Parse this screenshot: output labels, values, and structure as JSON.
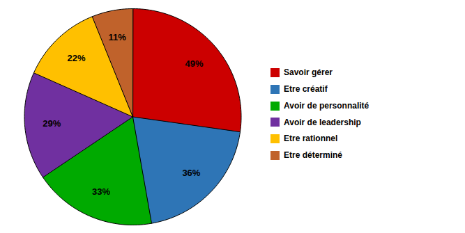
{
  "chart_data": {
    "type": "pie",
    "categories": [
      "Savoir gérer",
      "Etre créatif",
      "Avoir de personnalité",
      "Avoir de leadership",
      "Etre rationnel",
      "Etre déterminé"
    ],
    "values": [
      49,
      36,
      33,
      29,
      22,
      11
    ],
    "value_labels": [
      "49%",
      "36%",
      "33%",
      "29%",
      "22%",
      "11%"
    ],
    "colors": [
      "#cc0000",
      "#2e75b6",
      "#00aa00",
      "#7030a0",
      "#ffc000",
      "#c0622b"
    ],
    "data_labels": true,
    "legend": "right"
  }
}
